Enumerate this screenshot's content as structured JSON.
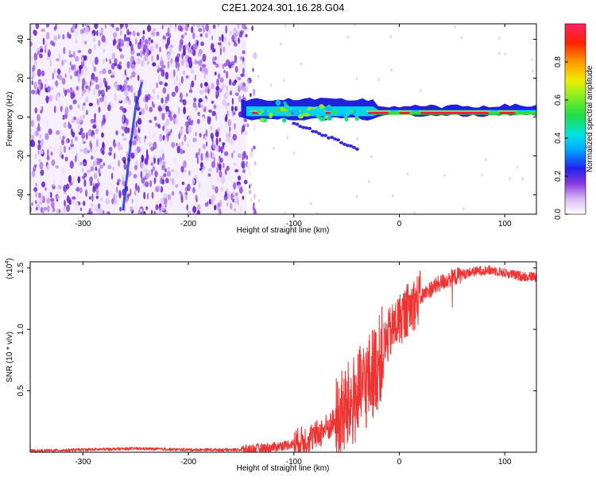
{
  "title": "C2E1.2024.301.16.28.G04",
  "colors": {
    "snr_line": "#ee3333",
    "axis": "#000000",
    "noise_purple": "#7b2fd6"
  },
  "chart_data": [
    {
      "type": "heatmap",
      "xlabel": "Height of straight line (km)",
      "ylabel": "Frequency (Hz)",
      "xlim": [
        -350,
        130
      ],
      "ylim": [
        -50,
        48
      ],
      "x_ticks": [
        -300,
        -200,
        -100,
        0,
        100
      ],
      "x_tick_labels": [
        "-300",
        "-200",
        "-100",
        "0",
        "100"
      ],
      "y_ticks": [
        -40,
        -20,
        0,
        20,
        40
      ],
      "y_tick_labels": [
        "-40",
        "-20",
        "0",
        "20",
        "40"
      ],
      "colorbar": {
        "label": "Normalized spectral amplitude",
        "range": [
          0,
          1
        ],
        "ticks": [
          0,
          0.2,
          0.4,
          0.6,
          0.8
        ],
        "tick_labels": [
          "0.0",
          "0.2",
          "0.4",
          "0.6",
          "0.8"
        ]
      },
      "features": {
        "noise_region_x": [
          -350,
          -145
        ],
        "signal_band_center_hz": 2,
        "signal_band_x": [
          -150,
          130
        ]
      }
    },
    {
      "type": "line",
      "xlabel": "Height of straight line (km)",
      "ylabel": "SNR (10 * v/v)",
      "y_multiplier": "(x10",
      "y_multiplier_exp": "4",
      "y_multiplier_close": ")",
      "xlim": [
        -350,
        130
      ],
      "ylim": [
        0,
        1.55
      ],
      "x_ticks": [
        -300,
        -200,
        -100,
        0,
        100
      ],
      "x_tick_labels": [
        "-300",
        "-200",
        "-100",
        "0",
        "100"
      ],
      "y_ticks": [
        0.5,
        1.0,
        1.5
      ],
      "y_tick_labels": [
        "0.5",
        "1.0",
        "1.5"
      ],
      "series": [
        {
          "x": [
            -350,
            -300,
            -250,
            -200,
            -150,
            -120,
            -100,
            -80,
            -60,
            -50,
            -40,
            -30,
            -20,
            -15,
            -10,
            -5,
            0,
            10,
            20,
            30,
            40,
            50,
            60,
            70,
            80,
            90,
            100,
            110,
            120,
            130
          ],
          "y": [
            0.01,
            0.02,
            0.03,
            0.02,
            0.02,
            0.04,
            0.07,
            0.13,
            0.25,
            0.35,
            0.45,
            0.58,
            0.72,
            0.85,
            0.95,
            1.02,
            1.08,
            1.18,
            1.26,
            1.33,
            1.38,
            1.42,
            1.45,
            1.47,
            1.48,
            1.48,
            1.46,
            1.44,
            1.43,
            1.43
          ]
        }
      ]
    }
  ]
}
